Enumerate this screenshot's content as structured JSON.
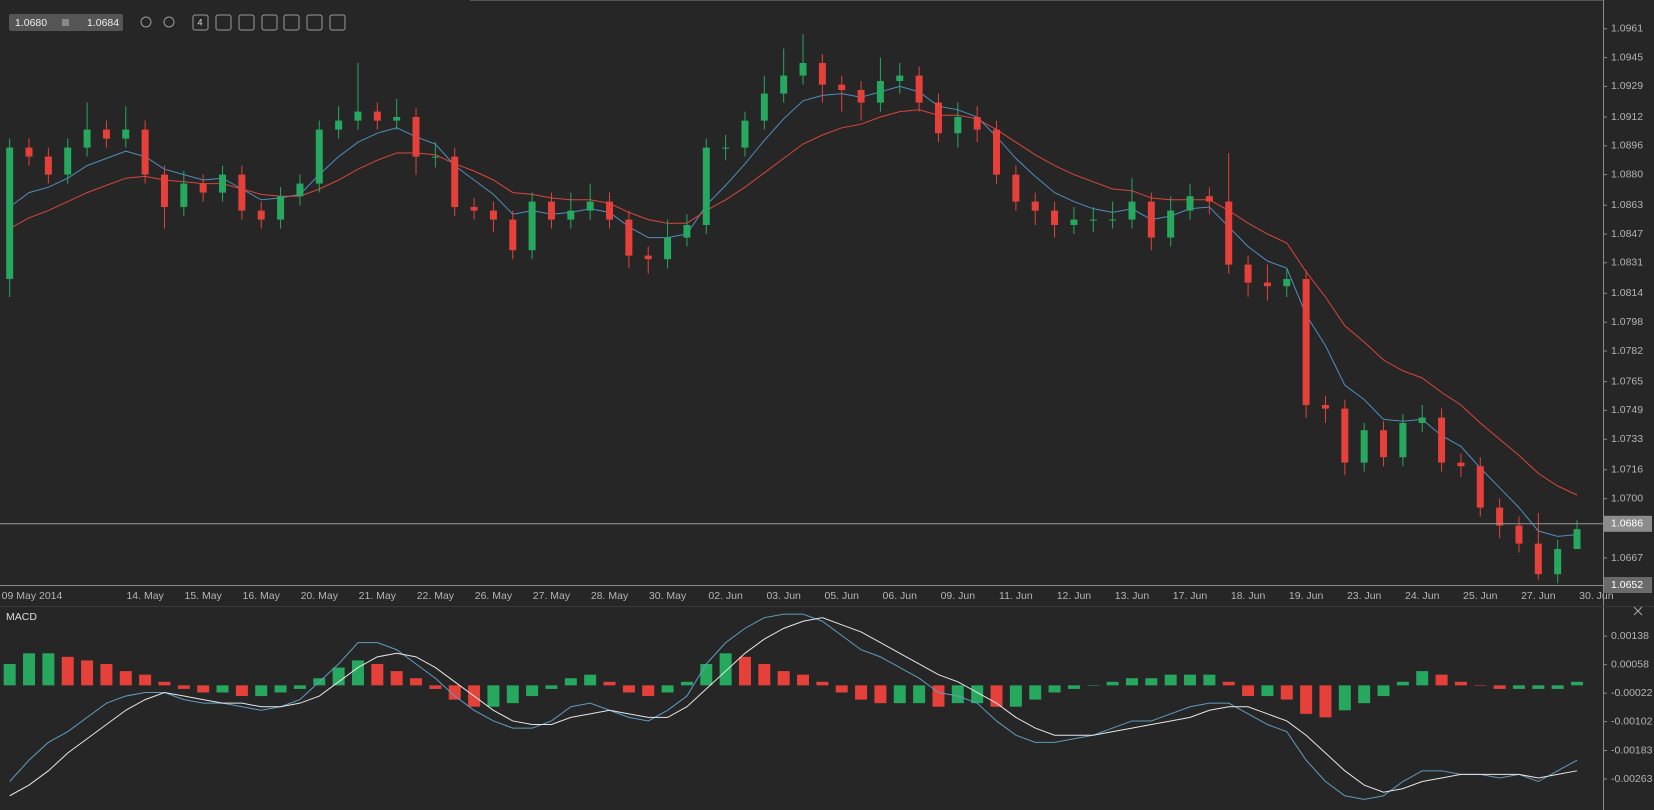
{
  "toolbar": {
    "bid": "1.0680",
    "ask": "1.0684",
    "timeframe": "4"
  },
  "chart_data": [
    {
      "type": "candlestick",
      "categories": [
        null,
        "09 May 2014",
        null,
        null,
        null,
        null,
        null,
        "14. May",
        null,
        null,
        "15. May",
        null,
        null,
        "16. May",
        null,
        null,
        "20. May",
        null,
        null,
        "21. May",
        null,
        null,
        "22. May",
        null,
        null,
        "26. May",
        null,
        null,
        "27. May",
        null,
        null,
        "28. May",
        null,
        null,
        "30. May",
        null,
        null,
        "02. Jun",
        null,
        null,
        "03. Jun",
        null,
        null,
        "05. Jun",
        null,
        null,
        "06. Jun",
        null,
        null,
        "09. Jun",
        null,
        null,
        "11. Jun",
        null,
        null,
        "12. Jun",
        null,
        null,
        "13. Jun",
        null,
        null,
        "17. Jun",
        null,
        null,
        "18. Jun",
        null,
        null,
        "19. Jun",
        null,
        null,
        "23. Jun",
        null,
        null,
        "24. Jun",
        null,
        null,
        "25. Jun",
        null,
        null,
        "27. Jun",
        null,
        null,
        "30. Jun"
      ],
      "open": [
        1.0822,
        1.0895,
        1.089,
        1.088,
        1.0895,
        1.0905,
        1.09,
        1.0905,
        1.088,
        1.0862,
        1.0875,
        1.087,
        1.088,
        1.086,
        1.0855,
        1.0868,
        1.0875,
        1.0905,
        1.091,
        1.0915,
        1.091,
        1.0912,
        1.089,
        1.089,
        1.0862,
        1.086,
        1.0855,
        1.0838,
        1.0865,
        1.0855,
        1.086,
        1.0865,
        1.0855,
        1.0835,
        1.0833,
        1.0845,
        1.0852,
        1.0895,
        1.0895,
        1.091,
        1.0925,
        1.0935,
        1.0942,
        1.093,
        1.0927,
        1.092,
        1.0932,
        1.0935,
        1.092,
        1.0903,
        1.0912,
        1.0905,
        1.088,
        1.0865,
        1.086,
        1.0852,
        1.0855,
        1.0855,
        1.0855,
        1.0865,
        1.0845,
        1.086,
        1.0868,
        1.0865,
        1.083,
        1.082,
        1.0818,
        1.0822,
        1.0752,
        1.075,
        1.072,
        1.0738,
        1.0723,
        1.0742,
        1.0745,
        1.072,
        1.0718,
        1.0695,
        1.0685,
        1.0675,
        1.0658,
        1.0672,
        null
      ],
      "high": [
        1.09,
        1.09,
        1.0895,
        1.09,
        1.092,
        1.091,
        1.0918,
        1.091,
        1.0885,
        1.0882,
        1.088,
        1.0885,
        1.0885,
        1.0865,
        1.0873,
        1.088,
        1.091,
        1.0918,
        1.0942,
        1.092,
        1.0922,
        1.0917,
        1.0898,
        1.0895,
        1.0867,
        1.0865,
        1.086,
        1.087,
        1.087,
        1.087,
        1.0875,
        1.087,
        1.086,
        1.084,
        1.0855,
        1.0858,
        1.09,
        1.0902,
        1.0915,
        1.0935,
        1.095,
        1.0958,
        1.0947,
        1.0935,
        1.0932,
        1.0945,
        1.0942,
        1.094,
        1.0925,
        1.092,
        1.0918,
        1.091,
        1.0885,
        1.087,
        1.0865,
        1.0862,
        1.0862,
        1.0865,
        1.0878,
        1.087,
        1.0868,
        1.0875,
        1.0873,
        1.0892,
        1.0835,
        1.083,
        1.0828,
        1.0827,
        1.0757,
        1.0755,
        1.0742,
        1.0743,
        1.0747,
        1.0752,
        1.075,
        1.0725,
        1.0723,
        1.07,
        1.069,
        1.0692,
        1.0677,
        1.0688,
        null
      ],
      "low": [
        1.0812,
        1.0885,
        1.0875,
        1.0875,
        1.089,
        1.0895,
        1.0895,
        1.0875,
        1.085,
        1.0857,
        1.0865,
        1.0865,
        1.0855,
        1.085,
        1.085,
        1.0863,
        1.087,
        1.09,
        1.0905,
        1.0905,
        1.0905,
        1.088,
        1.0884,
        1.0857,
        1.0855,
        1.0848,
        1.0833,
        1.0833,
        1.085,
        1.085,
        1.0855,
        1.085,
        1.0828,
        1.0825,
        1.0828,
        1.084,
        1.0847,
        1.0888,
        1.089,
        1.0905,
        1.092,
        1.093,
        1.092,
        1.0915,
        1.091,
        1.0915,
        1.0925,
        1.0915,
        1.0898,
        1.0895,
        1.0898,
        1.0875,
        1.086,
        1.0852,
        1.0845,
        1.0847,
        1.0848,
        1.085,
        1.085,
        1.0838,
        1.084,
        1.0855,
        1.0858,
        1.0825,
        1.0812,
        1.081,
        1.0812,
        1.0745,
        1.0742,
        1.0713,
        1.0715,
        1.0718,
        1.0718,
        1.0737,
        1.0715,
        1.0712,
        1.069,
        1.0678,
        1.067,
        1.0655,
        1.0653,
        1.0675,
        null
      ],
      "close": [
        1.0895,
        1.089,
        1.088,
        1.0895,
        1.0905,
        1.09,
        1.0905,
        1.088,
        1.0862,
        1.0875,
        1.087,
        1.088,
        1.086,
        1.0855,
        1.0868,
        1.0875,
        1.0905,
        1.091,
        1.0915,
        1.091,
        1.0912,
        1.089,
        1.089,
        1.0862,
        1.086,
        1.0855,
        1.0838,
        1.0865,
        1.0855,
        1.086,
        1.0865,
        1.0855,
        1.0835,
        1.0833,
        1.0845,
        1.0852,
        1.0895,
        1.0895,
        1.091,
        1.0925,
        1.0935,
        1.0942,
        1.093,
        1.0927,
        1.092,
        1.0932,
        1.0935,
        1.092,
        1.0903,
        1.0912,
        1.0905,
        1.088,
        1.0865,
        1.086,
        1.0852,
        1.0855,
        1.0855,
        1.0855,
        1.0865,
        1.0845,
        1.086,
        1.0868,
        1.0865,
        1.083,
        1.082,
        1.0818,
        1.0822,
        1.0752,
        1.075,
        1.072,
        1.0738,
        1.0723,
        1.0742,
        1.0745,
        1.072,
        1.0718,
        1.0695,
        1.0685,
        1.0675,
        1.0658,
        1.0672,
        1.0683,
        null
      ],
      "up_color": "#27a85f",
      "down_color": "#e5413a",
      "series": [
        {
          "color": "#4f8fc0",
          "values": [
            1.0862,
            1.087,
            1.0873,
            1.0878,
            1.0885,
            1.0889,
            1.0893,
            1.089,
            1.0883,
            1.088,
            1.0877,
            1.0878,
            1.0872,
            1.0866,
            1.0867,
            1.0869,
            1.088,
            1.089,
            1.0898,
            1.0903,
            1.0906,
            1.0901,
            1.0897,
            1.0885,
            1.0877,
            1.0869,
            1.0858,
            1.086,
            1.0858,
            1.0859,
            1.0861,
            1.0859,
            1.0851,
            1.0845,
            1.0845,
            1.0847,
            1.0863,
            1.0874,
            1.0886,
            1.0899,
            1.0911,
            1.0921,
            1.0924,
            1.0925,
            1.0923,
            1.0926,
            1.0929,
            1.0926,
            1.0918,
            1.0916,
            1.0912,
            1.0901,
            1.0889,
            1.0879,
            1.087,
            1.0865,
            1.0861,
            1.0859,
            1.0861,
            1.0855,
            1.0857,
            1.0861,
            1.0862,
            1.0851,
            1.084,
            1.0832,
            1.0828,
            1.0802,
            1.0785,
            1.0763,
            1.0755,
            1.0744,
            1.0743,
            1.0744,
            1.0735,
            1.0729,
            1.0717,
            1.0706,
            1.0695,
            1.0682,
            1.0679,
            1.068,
            null
          ]
        },
        {
          "color": "#d9463b",
          "values": [
            1.085,
            1.0856,
            1.086,
            1.0865,
            1.087,
            1.0874,
            1.0878,
            1.0879,
            1.0877,
            1.0876,
            1.0875,
            1.0875,
            1.0872,
            1.0869,
            1.0868,
            1.0868,
            1.0872,
            1.0877,
            1.0883,
            1.0888,
            1.0892,
            1.0892,
            1.0891,
            1.0886,
            1.0882,
            1.0877,
            1.087,
            1.0869,
            1.0867,
            1.0866,
            1.0866,
            1.0864,
            1.0859,
            1.0855,
            1.0853,
            1.0853,
            1.086,
            1.0866,
            1.0873,
            1.0881,
            1.0889,
            1.0897,
            1.0902,
            1.0906,
            1.0908,
            1.0912,
            1.0915,
            1.0916,
            1.0913,
            1.0913,
            1.0911,
            1.0905,
            1.0898,
            1.0891,
            1.0885,
            1.088,
            1.0876,
            1.0872,
            1.0871,
            1.0867,
            1.0866,
            1.0866,
            1.0866,
            1.086,
            1.0853,
            1.0847,
            1.0842,
            1.0826,
            1.0812,
            1.0796,
            1.0787,
            1.0777,
            1.0771,
            1.0767,
            1.0759,
            1.0752,
            1.0742,
            1.0733,
            1.0724,
            1.0714,
            1.0707,
            1.0702,
            null
          ]
        }
      ],
      "ylim": [
        1.0652,
        1.0977
      ],
      "yticks": [
        1.0961,
        1.0945,
        1.0929,
        1.0912,
        1.0896,
        {
          "value": 1.088,
          "label": "1.0880"
        },
        1.0863,
        1.0847,
        1.0831,
        1.0814,
        1.0798,
        1.0782,
        1.0765,
        1.0749,
        1.0733,
        1.0716,
        {
          "value": 1.07,
          "label": "1.0700"
        },
        1.0667
      ],
      "current_price": 1.0686
    },
    {
      "type": "macd",
      "title": "MACD",
      "histogram": {
        "values": [
          0.0006,
          0.0009,
          0.0009,
          0.0008,
          0.0007,
          0.0006,
          0.0004,
          0.0003,
          0.0001,
          -0.0001,
          -0.0002,
          -0.0002,
          -0.0003,
          -0.0003,
          -0.0002,
          -0.0001,
          0.0002,
          0.0005,
          0.0007,
          0.0006,
          0.0004,
          0.0002,
          -0.0001,
          -0.0004,
          -0.0006,
          -0.0006,
          -0.0005,
          -0.0003,
          -0.0001,
          0.0002,
          0.0003,
          0.0001,
          -0.0002,
          -0.0003,
          -0.0002,
          0.0001,
          0.0006,
          0.0009,
          0.0008,
          0.0006,
          0.0004,
          0.0003,
          0.0001,
          -0.0002,
          -0.0004,
          -0.0005,
          -0.0005,
          -0.0005,
          -0.0006,
          -0.0005,
          -0.0005,
          -0.0006,
          -0.0006,
          -0.0004,
          -0.0002,
          -0.0001,
          0,
          0.0001,
          0.0002,
          0.0002,
          0.0003,
          0.0003,
          0.0003,
          0.0001,
          -0.0003,
          -0.0003,
          -0.0004,
          -0.0008,
          -0.0009,
          -0.0007,
          -0.0005,
          -0.0003,
          0.0001,
          0.0004,
          0.0003,
          0.0001,
          0,
          -0.0001,
          -0.0001,
          -0.0001,
          -0.0001,
          0.0001,
          null
        ],
        "up_color": "#27a85f",
        "down_color": "#e5413a"
      },
      "series": [
        {
          "color": "#5f9cc2",
          "values": [
            -0.0027,
            -0.0021,
            -0.0016,
            -0.0013,
            -0.0009,
            -0.0005,
            -0.0003,
            -0.0002,
            -0.0002,
            -0.0004,
            -0.0005,
            -0.0005,
            -0.0006,
            -0.0007,
            -0.0006,
            -0.0004,
            0.0001,
            0.0006,
            0.0012,
            0.0012,
            0.001,
            0.0006,
            0.0002,
            -0.0003,
            -0.0007,
            -0.001,
            -0.0012,
            -0.0012,
            -0.001,
            -0.0006,
            -0.0005,
            -0.0007,
            -0.0009,
            -0.001,
            -0.0007,
            -0.0003,
            0.0006,
            0.0012,
            0.0016,
            0.0019,
            0.002,
            0.002,
            0.0018,
            0.0014,
            0.001,
            0.0008,
            0.0005,
            0.0002,
            -0.0002,
            -0.0003,
            -0.0005,
            -0.001,
            -0.0014,
            -0.0016,
            -0.0016,
            -0.0015,
            -0.0014,
            -0.0012,
            -0.001,
            -0.001,
            -0.0008,
            -0.0006,
            -0.0005,
            -0.0005,
            -0.0008,
            -0.0011,
            -0.0013,
            -0.0021,
            -0.0027,
            -0.0031,
            -0.0032,
            -0.0031,
            -0.0027,
            -0.0024,
            -0.0024,
            -0.0025,
            -0.0025,
            -0.0026,
            -0.0025,
            -0.0027,
            -0.0024,
            -0.0021,
            null
          ]
        },
        {
          "color": "#e6e6e6",
          "values": [
            -0.0031,
            -0.0028,
            -0.0024,
            -0.0019,
            -0.0015,
            -0.0011,
            -0.0007,
            -0.0004,
            -0.0002,
            -0.0003,
            -0.0004,
            -0.0005,
            -0.0005,
            -0.0006,
            -0.0006,
            -0.0005,
            -0.0003,
            0.0001,
            0.0005,
            0.0008,
            0.0009,
            0.0008,
            0.0005,
            0.0001,
            -0.0003,
            -0.0007,
            -0.001,
            -0.0011,
            -0.0011,
            -0.0009,
            -0.0008,
            -0.0007,
            -0.0008,
            -0.0009,
            -0.0009,
            -0.0006,
            -0.0001,
            0.0004,
            0.0009,
            0.0013,
            0.0016,
            0.0018,
            0.0019,
            0.0017,
            0.0015,
            0.0012,
            0.0009,
            0.0006,
            0.0003,
            0.0001,
            -0.0002,
            -0.0005,
            -0.0009,
            -0.0012,
            -0.0014,
            -0.0014,
            -0.0014,
            -0.0013,
            -0.0012,
            -0.0011,
            -0.001,
            -0.0009,
            -0.0007,
            -0.0006,
            -0.0006,
            -0.0008,
            -0.001,
            -0.0014,
            -0.0019,
            -0.0024,
            -0.0028,
            -0.003,
            -0.0029,
            -0.0027,
            -0.0026,
            -0.0025,
            -0.0025,
            -0.0025,
            -0.0025,
            -0.0026,
            -0.0025,
            -0.0024,
            null
          ]
        }
      ],
      "ylim": [
        -0.0035,
        0.0022
      ],
      "yticks": [
        0.00138,
        0.00058,
        -0.00022,
        -0.00102,
        -0.00183,
        -0.00263
      ]
    }
  ]
}
